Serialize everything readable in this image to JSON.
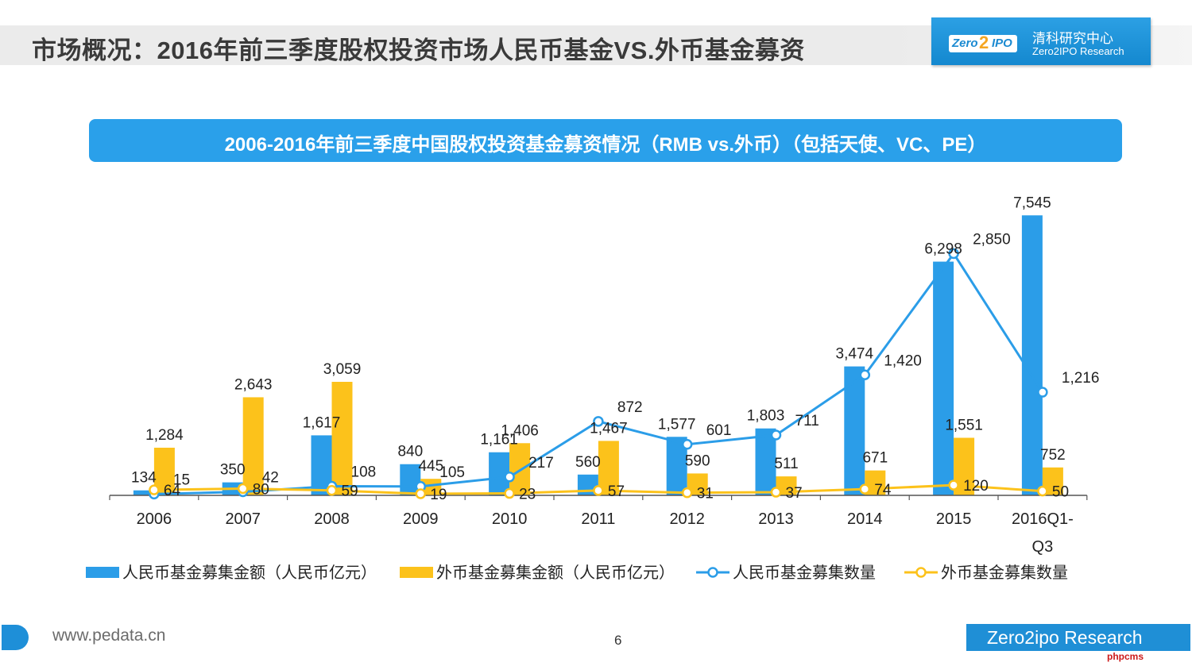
{
  "header": {
    "title": "市场概况：2016年前三季度股权投资市场人民币基金VS.外币基金募资",
    "brand_logo": "Zero2IPO",
    "brand_cn": "清科研究中心",
    "brand_en": "Zero2IPO Research"
  },
  "chart_banner": {
    "title": "2006-2016年前三季度中国股权投资基金募资情况（RMB vs.外币）（包括天使、VC、PE）"
  },
  "chart_data": {
    "type": "bar",
    "categories": [
      "2006",
      "2007",
      "2008",
      "2009",
      "2010",
      "2011",
      "2012",
      "2013",
      "2014",
      "2015",
      "2016Q1-Q3"
    ],
    "series": [
      {
        "name": "人民币基金募集金额（人民币亿元）",
        "type": "bar",
        "axis": "amount",
        "color": "#2b9de8",
        "values": [
          134,
          350,
          1617,
          840,
          1161,
          560,
          1577,
          1803,
          3474,
          6298,
          7545
        ]
      },
      {
        "name": "外币基金募集金额（人民币亿元）",
        "type": "bar",
        "axis": "amount",
        "color": "#fcc21b",
        "values": [
          1284,
          2643,
          3059,
          445,
          1406,
          1467,
          590,
          511,
          671,
          1551,
          752
        ]
      },
      {
        "name": "人民币基金募集数量",
        "type": "line",
        "axis": "count",
        "color": "#2b9de8",
        "values": [
          15,
          42,
          108,
          105,
          217,
          872,
          601,
          711,
          1420,
          2850,
          1216
        ]
      },
      {
        "name": "外币基金募集数量",
        "type": "line",
        "axis": "count",
        "color": "#fcc21b",
        "values": [
          64,
          80,
          59,
          19,
          23,
          57,
          31,
          37,
          74,
          120,
          50
        ]
      }
    ],
    "ylim_amount": [
      0,
      8000
    ],
    "ylim_count": [
      0,
      3500
    ],
    "legend_position": "bottom",
    "grid": false
  },
  "footer": {
    "site": "www.pedata.cn",
    "page_number": "6",
    "brand": "Zero2ipo Research",
    "watermark": "phpcms"
  }
}
